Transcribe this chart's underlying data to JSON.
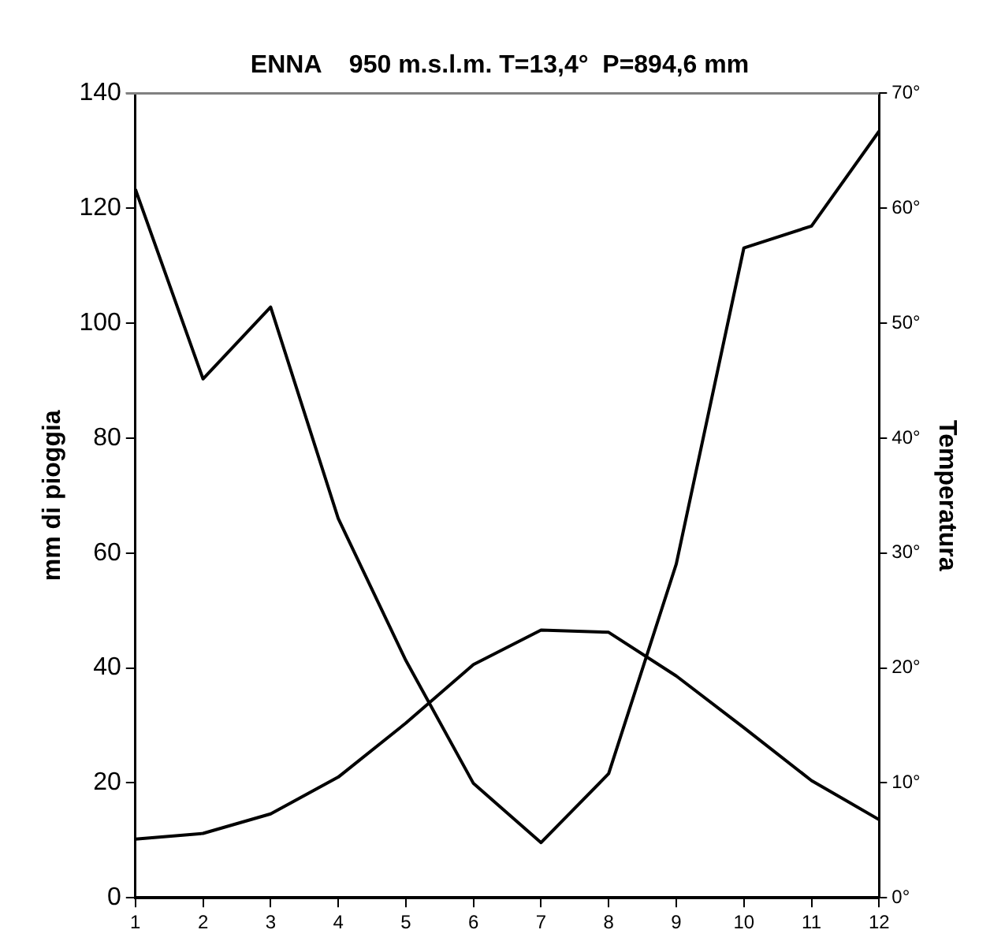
{
  "chart_data": {
    "type": "line",
    "title": "ENNA    950 m.s.l.m. T=13,4°  P=894,6 mm",
    "ylabel": "mm di pioggia",
    "y2label": "Temperatura",
    "x": [
      1,
      2,
      3,
      4,
      5,
      6,
      7,
      8,
      9,
      10,
      11,
      12
    ],
    "xlim": [
      1,
      12
    ],
    "xticks": [
      1,
      2,
      3,
      4,
      5,
      6,
      7,
      8,
      9,
      10,
      11,
      12
    ],
    "ylim": [
      0,
      140
    ],
    "yticks": [
      0,
      20,
      40,
      60,
      80,
      100,
      120,
      140
    ],
    "y2lim": [
      0,
      70
    ],
    "y2ticks": [
      {
        "value": 0,
        "label": "0°"
      },
      {
        "value": 10,
        "label": "10°"
      },
      {
        "value": 20,
        "label": "20°"
      },
      {
        "value": 30,
        "label": "30°"
      },
      {
        "value": 40,
        "label": "40°"
      },
      {
        "value": 50,
        "label": "50°"
      },
      {
        "value": 60,
        "label": "60°"
      },
      {
        "value": 70,
        "label": "70°"
      }
    ],
    "series": [
      {
        "color": "#000000",
        "values": [
          123.3,
          90.3,
          102.8,
          66,
          41.3,
          19.9,
          9.6,
          21.6,
          58.1,
          113.1,
          116.9,
          133.4
        ]
      },
      {
        "color": "#000000",
        "axis": "y2",
        "values": [
          5.1,
          5.6,
          7.3,
          10.5,
          15.2,
          20.3,
          23.3,
          23.1,
          19.3,
          14.8,
          10.2,
          6.8
        ]
      }
    ],
    "grid": false,
    "legend": false,
    "marker": "none",
    "line_style": "solid"
  }
}
